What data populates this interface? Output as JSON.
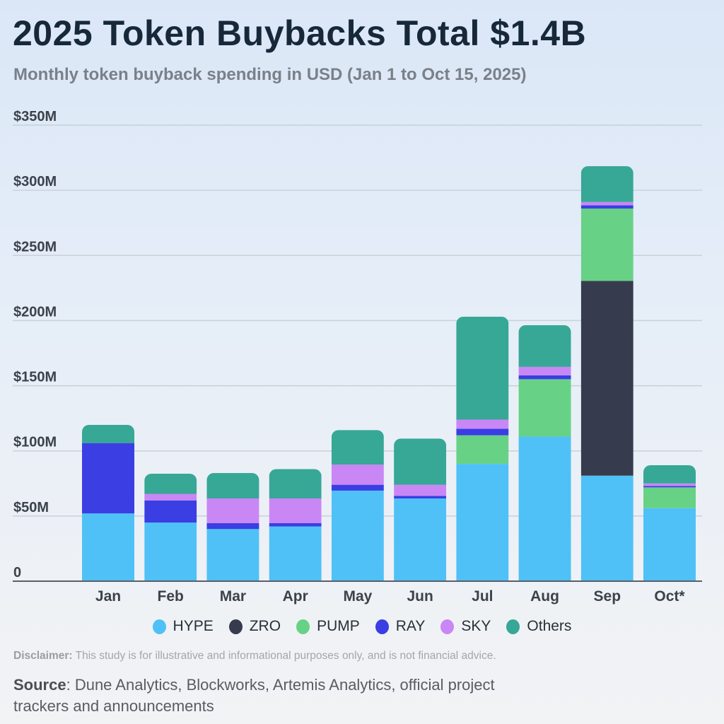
{
  "header": {
    "title": "2025 Token Buybacks Total $1.4B",
    "subtitle": "Monthly token buyback spending in USD (Jan 1 to Oct 15, 2025)"
  },
  "chart_data": {
    "type": "bar",
    "stacked": true,
    "title": "2025 Token Buybacks Total $1.4B",
    "xlabel": "",
    "ylabel": "USD",
    "ylim": [
      0,
      350
    ],
    "unit": "$M",
    "grid": true,
    "legend_position": "bottom",
    "y_ticks": [
      {
        "value": 0,
        "label": "0"
      },
      {
        "value": 50,
        "label": "$50M"
      },
      {
        "value": 100,
        "label": "$100M"
      },
      {
        "value": 150,
        "label": "$150M"
      },
      {
        "value": 200,
        "label": "$200M"
      },
      {
        "value": 250,
        "label": "$250M"
      },
      {
        "value": 300,
        "label": "$300M"
      },
      {
        "value": 350,
        "label": "$350M"
      }
    ],
    "categories": [
      "Jan",
      "Feb",
      "Mar",
      "Apr",
      "May",
      "Jun",
      "Jul",
      "Aug",
      "Sep",
      "Oct*"
    ],
    "series": [
      {
        "name": "HYPE",
        "color": "#4fc1f7",
        "values": [
          52,
          45,
          40,
          42,
          69.5,
          63.5,
          90,
          111,
          81,
          56
        ]
      },
      {
        "name": "ZRO",
        "color": "#363c4e",
        "values": [
          0,
          0,
          0,
          0,
          0,
          0,
          0,
          0,
          149.5,
          0
        ]
      },
      {
        "name": "PUMP",
        "color": "#67d286",
        "values": [
          0,
          0,
          0,
          0,
          0,
          0,
          22,
          44,
          55.5,
          16
        ]
      },
      {
        "name": "RAY",
        "color": "#3a3ee3",
        "values": [
          54,
          17,
          4.5,
          2.5,
          4.5,
          2,
          5,
          3,
          2.5,
          1
        ]
      },
      {
        "name": "SKY",
        "color": "#c987f5",
        "values": [
          0,
          5,
          19,
          19,
          15.5,
          8.5,
          7,
          6.5,
          2.5,
          2
        ]
      },
      {
        "name": "Others",
        "color": "#37a796",
        "values": [
          14,
          15.5,
          19.5,
          22.5,
          26.5,
          35.5,
          79,
          32,
          27.5,
          14
        ]
      }
    ]
  },
  "footer": {
    "disclaimer_label": "Disclaimer:",
    "disclaimer_text": " This study is for illustrative and informational purposes only, and is not financial advice.",
    "source_label": "Source",
    "source_text": ": Dune Analytics, Blockworks, Artemis Analytics, official project trackers and announcements"
  }
}
